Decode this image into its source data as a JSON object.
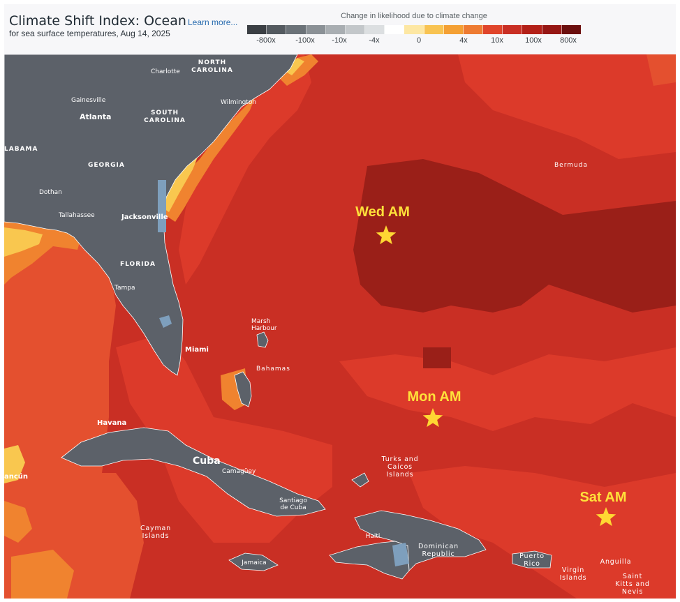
{
  "header": {
    "title": "Climate Shift Index: Ocean",
    "learn_more": "Learn more...",
    "subtitle": "for sea surface temperatures, Aug 14, 2025"
  },
  "legend": {
    "title": "Change in likelihood due to climate change",
    "swatches": [
      "#3b3f44",
      "#545a60",
      "#6b7278",
      "#8b9196",
      "#a9aeb2",
      "#c3c7ca",
      "#dcdfe1",
      "#ffffff",
      "#fde7a3",
      "#f8c352",
      "#f4a034",
      "#ee7b32",
      "#e0452b",
      "#c92f24",
      "#b32018",
      "#961714",
      "#6b0f0e"
    ],
    "ticks": [
      "-800x",
      "-100x",
      "-10x",
      "-4x",
      "0",
      "4x",
      "10x",
      "100x",
      "800x"
    ]
  },
  "map": {
    "place_labels": {
      "north_carolina": [
        "NORTH",
        "CAROLINA"
      ],
      "charlotte": "Charlotte",
      "wilmington": "Wilmington",
      "gainesville": "Gainesville",
      "atlanta": "Atlanta",
      "south_carolina": [
        "SOUTH",
        "CAROLINA"
      ],
      "alabama": "LABAMA",
      "georgia": "GEORGIA",
      "dothan": "Dothan",
      "tallahassee": "Tallahassee",
      "jacksonville": "Jacksonville",
      "florida": "FLORIDA",
      "tampa": "Tampa",
      "miami": "Miami",
      "bermuda": "Bermuda",
      "marsh_harbour": [
        "Marsh",
        "Harbour"
      ],
      "bahamas": "Bahamas",
      "havana": "Havana",
      "cuba": "Cuba",
      "camaguey": "Camagüey",
      "santiago": [
        "Santiago",
        "de Cuba"
      ],
      "cancun": "ancún",
      "turks_caicos": [
        "Turks and",
        "Caicos",
        "Islands"
      ],
      "cayman": [
        "Cayman",
        "Islands"
      ],
      "jamaica": "Jamaica",
      "haiti": "Haiti",
      "dominican": [
        "Dominican",
        "Republic"
      ],
      "puerto_rico": [
        "Puerto",
        "Rico"
      ],
      "virgin": [
        "Virgin",
        "Islands"
      ],
      "anguilla": "Anguilla",
      "saint_kitts": [
        "Saint",
        "Kitts and",
        "Nevis"
      ]
    },
    "markers": [
      {
        "label": "Wed AM",
        "color": "#ffd733"
      },
      {
        "label": "Mon AM",
        "color": "#ffd733"
      },
      {
        "label": "Sat AM",
        "color": "#ffd733"
      }
    ],
    "colors": {
      "land": "#5c6169",
      "water_inland": "#7e9fbd",
      "ocean_base": "#c92f24",
      "ocean_dark": "#9a1f18",
      "ocean_mid": "#dc3a2a",
      "ocean_light": "#e4502f",
      "coast_orange": "#f0832f",
      "coast_yellow": "#f9c74f"
    }
  }
}
